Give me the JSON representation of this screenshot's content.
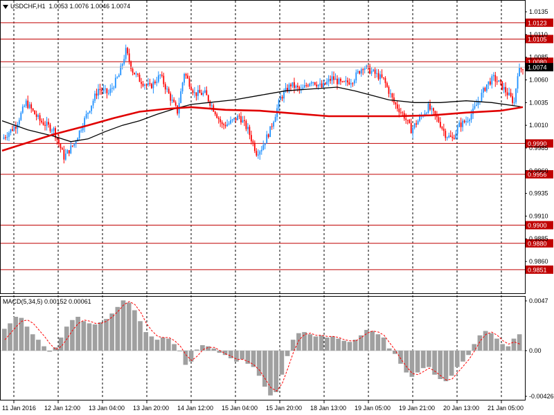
{
  "header": {
    "symbol": "USDCHF,H1",
    "ohlc": "1.0053 1.0076 1.0046 1.0074"
  },
  "macd_header": {
    "label": "MACD(5,34,5) 0.00152 0.00061"
  },
  "colors": {
    "background": "#ffffff",
    "bull_candle": "#1e90ff",
    "bear_candle": "#ff0000",
    "grid": "#000000",
    "levels": "#c00000",
    "ma_red": "#e00000",
    "ma_black": "#000000",
    "histogram": "#a0a0a0",
    "signal": "#ff0000"
  },
  "icons": {
    "menu": "triangle-down-icon"
  },
  "chart_data": [
    {
      "type": "candlestick",
      "title": "USDCHF,H1",
      "ylim": [
        0.9825,
        1.0148
      ],
      "y_ticks": [
        "1.0135",
        "1.0110",
        "1.0085",
        "1.0060",
        "1.0035",
        "1.0010",
        "0.9985",
        "0.9960",
        "0.9935",
        "0.9910",
        "0.9885",
        "0.9860"
      ],
      "x_labels": [
        "11 Jan 2016",
        "12 Jan 12:00",
        "13 Jan 04:00",
        "13 Jan 20:00",
        "14 Jan 12:00",
        "15 Jan 04:00",
        "15 Jan 20:00",
        "18 Jan 13:00",
        "19 Jan 05:00",
        "19 Jan 21:00",
        "20 Jan 13:00",
        "21 Jan 05:00"
      ],
      "current_price": "1.0074",
      "levels": [
        {
          "value": 1.0123,
          "label": "1.0123"
        },
        {
          "value": 1.0105,
          "label": "1.0105"
        },
        {
          "value": 1.008,
          "label": "1.0080"
        },
        {
          "value": 0.999,
          "label": "0.9990"
        },
        {
          "value": 0.9956,
          "label": "0.9956"
        },
        {
          "value": 0.99,
          "label": "0.9900"
        },
        {
          "value": 0.988,
          "label": "0.9880"
        },
        {
          "value": 0.9851,
          "label": "0.9851"
        }
      ],
      "close_path": [
        [
          0,
          0.9995
        ],
        [
          8,
          1.001
        ],
        [
          14,
          1.0035
        ],
        [
          22,
          1.0015
        ],
        [
          30,
          1.0005
        ],
        [
          36,
          0.9975
        ],
        [
          42,
          0.999
        ],
        [
          50,
          1.0025
        ],
        [
          56,
          1.005
        ],
        [
          62,
          1.0045
        ],
        [
          68,
          1.0065
        ],
        [
          72,
          1.0092
        ],
        [
          76,
          1.007
        ],
        [
          80,
          1.006
        ],
        [
          86,
          1.0052
        ],
        [
          92,
          1.0065
        ],
        [
          98,
          1.004
        ],
        [
          102,
          1.0025
        ],
        [
          106,
          1.0068
        ],
        [
          112,
          1.0045
        ],
        [
          118,
          1.0045
        ],
        [
          124,
          1.0025
        ],
        [
          128,
          1.001
        ],
        [
          132,
          1.0012
        ],
        [
          138,
          1.002
        ],
        [
          143,
          1.0005
        ],
        [
          148,
          0.998
        ],
        [
          151,
          0.9985
        ],
        [
          156,
          1.0005
        ],
        [
          162,
          1.004
        ],
        [
          168,
          1.0055
        ],
        [
          174,
          1.0048
        ],
        [
          180,
          1.006
        ],
        [
          186,
          1.0052
        ],
        [
          192,
          1.0062
        ],
        [
          198,
          1.0055
        ],
        [
          204,
          1.006
        ],
        [
          210,
          1.0075
        ],
        [
          216,
          1.0068
        ],
        [
          222,
          1.006
        ],
        [
          228,
          1.0035
        ],
        [
          234,
          1.002
        ],
        [
          238,
          1.0005
        ],
        [
          242,
          1.0015
        ],
        [
          248,
          1.003
        ],
        [
          254,
          1.0015
        ],
        [
          258,
          1.0
        ],
        [
          262,
          0.9995
        ],
        [
          266,
          1.001
        ],
        [
          270,
          1.0015
        ],
        [
          274,
          1.0025
        ],
        [
          278,
          1.004
        ],
        [
          282,
          1.0055
        ],
        [
          286,
          1.0062
        ],
        [
          290,
          1.0055
        ],
        [
          294,
          1.0045
        ],
        [
          298,
          1.0035
        ],
        [
          300,
          1.0068
        ],
        [
          303,
          1.0074
        ]
      ],
      "ma_red_path": [
        [
          0,
          0.9982
        ],
        [
          30,
          1.0
        ],
        [
          50,
          1.001
        ],
        [
          65,
          1.0018
        ],
        [
          80,
          1.0025
        ],
        [
          95,
          1.0028
        ],
        [
          110,
          1.003
        ],
        [
          130,
          1.0027
        ],
        [
          150,
          1.0026
        ],
        [
          170,
          1.0023
        ],
        [
          190,
          1.002
        ],
        [
          210,
          1.002
        ],
        [
          230,
          1.002
        ],
        [
          250,
          1.0021
        ],
        [
          270,
          1.0024
        ],
        [
          290,
          1.0026
        ],
        [
          303,
          1.003
        ]
      ],
      "ma_black_path": [
        [
          0,
          1.0015
        ],
        [
          15,
          1.0005
        ],
        [
          30,
          0.9998
        ],
        [
          40,
          0.9992
        ],
        [
          50,
          0.9995
        ],
        [
          60,
          1.0003
        ],
        [
          70,
          1.001
        ],
        [
          80,
          1.0015
        ],
        [
          90,
          1.0022
        ],
        [
          100,
          1.0028
        ],
        [
          110,
          1.0033
        ],
        [
          120,
          1.0035
        ],
        [
          135,
          1.0038
        ],
        [
          150,
          1.0043
        ],
        [
          165,
          1.0048
        ],
        [
          180,
          1.005
        ],
        [
          195,
          1.0052
        ],
        [
          205,
          1.0048
        ],
        [
          215,
          1.0043
        ],
        [
          225,
          1.0038
        ],
        [
          240,
          1.0035
        ],
        [
          255,
          1.0035
        ],
        [
          270,
          1.0037
        ],
        [
          285,
          1.0035
        ],
        [
          300,
          1.0031
        ],
        [
          303,
          1.003
        ]
      ]
    },
    {
      "type": "bar",
      "title": "MACD(5,34,5) 0.00152 0.00061",
      "ylim": [
        -0.0045,
        0.005
      ],
      "y_ticks": [
        "0.0047",
        "0.00",
        "-0.00426"
      ],
      "series": [
        {
          "name": "MACD",
          "values": [
            0.002,
            0.0025,
            0.0031,
            0.003,
            0.0022,
            0.0015,
            0.001,
            0.0004,
            -0.0001,
            0.0003,
            0.0012,
            0.0022,
            0.0028,
            0.0031,
            0.0027,
            0.0025,
            0.0024,
            0.0026,
            0.0029,
            0.0034,
            0.004,
            0.0046,
            0.0044,
            0.0037,
            0.0027,
            0.0017,
            0.0013,
            0.001,
            0.0012,
            0.0011,
            0.0006,
            0.0,
            -0.0013,
            -0.001,
            0.0001,
            0.0005,
            0.0004,
            0.0002,
            -0.0002,
            -0.0004,
            -0.0007,
            -0.001,
            -0.0008,
            -0.0012,
            -0.0015,
            -0.0023,
            -0.0033,
            -0.0041,
            -0.0038,
            -0.0022,
            -0.0005,
            0.001,
            0.0016,
            0.0017,
            0.0015,
            0.0013,
            0.0014,
            0.0012,
            0.0013,
            0.0011,
            0.0009,
            0.0008,
            0.001,
            0.0014,
            0.0019,
            0.0018,
            0.0015,
            0.0012,
            0.0002,
            -0.0003,
            -0.0012,
            -0.002,
            -0.0024,
            -0.002,
            -0.0016,
            -0.0015,
            -0.0022,
            -0.0026,
            -0.0028,
            -0.0023,
            -0.0015,
            -0.001,
            -0.0004,
            0.0006,
            0.0014,
            0.0018,
            0.0016,
            0.0011,
            0.0006,
            0.0004,
            0.0011,
            0.0015
          ]
        },
        {
          "name": "Signal",
          "values": [
            0.001,
            0.0016,
            0.0022,
            0.0027,
            0.0028,
            0.0025,
            0.0019,
            0.0013,
            0.0006,
            0.0001,
            0.0004,
            0.0011,
            0.0019,
            0.0025,
            0.0028,
            0.0027,
            0.0025,
            0.0025,
            0.0027,
            0.0031,
            0.0036,
            0.0042,
            0.0045,
            0.0042,
            0.0035,
            0.0025,
            0.0018,
            0.0013,
            0.0012,
            0.0012,
            0.0009,
            0.0004,
            -0.0004,
            -0.0009,
            -0.0005,
            0.0001,
            0.0003,
            0.0003,
            0.0,
            -0.0003,
            -0.0005,
            -0.0008,
            -0.0008,
            -0.001,
            -0.0013,
            -0.0018,
            -0.0026,
            -0.0034,
            -0.0037,
            -0.003,
            -0.0016,
            -0.0001,
            0.001,
            0.0015,
            0.0016,
            0.0014,
            0.0014,
            0.0013,
            0.0013,
            0.0012,
            0.001,
            0.0009,
            0.0009,
            0.0012,
            0.0016,
            0.0018,
            0.0017,
            0.0014,
            0.0007,
            0.0,
            -0.0008,
            -0.0015,
            -0.0021,
            -0.0022,
            -0.0019,
            -0.0016,
            -0.0019,
            -0.0023,
            -0.0027,
            -0.0026,
            -0.002,
            -0.0014,
            -0.0008,
            0.0,
            0.0009,
            0.0015,
            0.0017,
            0.0014,
            0.0009,
            0.0006,
            0.0008,
            0.0006
          ]
        }
      ]
    }
  ]
}
